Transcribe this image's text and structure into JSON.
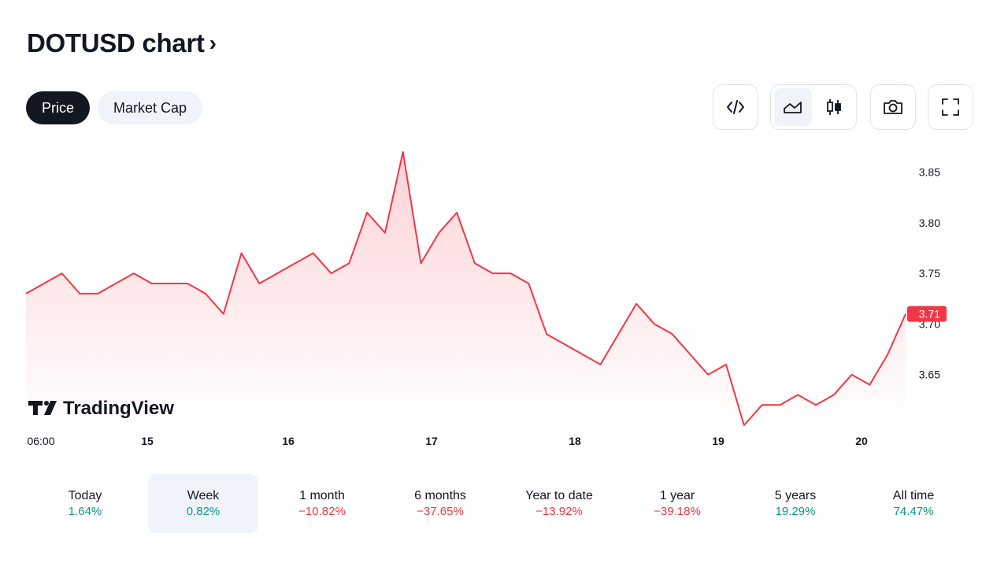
{
  "header": {
    "title": "DOTUSD chart",
    "chevron": "›"
  },
  "tabs": [
    {
      "label": "Price",
      "active": true
    },
    {
      "label": "Market Cap",
      "active": false
    }
  ],
  "toolbar": {
    "embed_icon": "code-icon",
    "area_chart_icon": "area-chart-icon",
    "candles_icon": "candles-icon",
    "snapshot_icon": "camera-icon",
    "fullscreen_icon": "fullscreen-icon",
    "active_style": "area"
  },
  "watermark": {
    "text": "TradingView"
  },
  "colors": {
    "line": "#f23645",
    "positive": "#089981",
    "negative": "#f23645",
    "text": "#131722",
    "muted": "#e0e3eb",
    "tab_bg": "#f0f3fa"
  },
  "chart_data": {
    "type": "area",
    "symbol": "DOTUSD",
    "x_tick_labels": [
      "06:00",
      "15",
      "16",
      "17",
      "18",
      "19",
      "20"
    ],
    "y_tick_labels": [
      "3.85",
      "3.80",
      "3.75",
      "3.70",
      "3.65"
    ],
    "ylim": [
      3.6,
      3.88
    ],
    "last_value": "3.71",
    "grid": false,
    "x": [
      "14 06:00",
      "14 09:00",
      "14 12:00",
      "14 15:00",
      "14 18:00",
      "14 21:00",
      "15 00:00",
      "15 03:00",
      "15 06:00",
      "15 09:00",
      "15 12:00",
      "15 15:00",
      "15 18:00",
      "15 21:00",
      "16 00:00",
      "16 03:00",
      "16 06:00",
      "16 09:00",
      "16 12:00",
      "16 15:00",
      "16 18:00",
      "16 21:00",
      "17 00:00",
      "17 03:00",
      "17 06:00",
      "17 09:00",
      "17 12:00",
      "17 15:00",
      "17 18:00",
      "17 21:00",
      "18 00:00",
      "18 03:00",
      "18 06:00",
      "18 09:00",
      "18 12:00",
      "18 15:00",
      "18 18:00",
      "18 21:00",
      "19 00:00",
      "19 03:00",
      "19 06:00",
      "19 09:00",
      "19 12:00",
      "19 15:00",
      "19 18:00",
      "19 21:00",
      "20 00:00",
      "20 03:00",
      "20 06:00",
      "20 09:00"
    ],
    "values": [
      3.73,
      3.74,
      3.75,
      3.73,
      3.73,
      3.74,
      3.75,
      3.74,
      3.74,
      3.74,
      3.73,
      3.71,
      3.77,
      3.74,
      3.75,
      3.76,
      3.77,
      3.75,
      3.76,
      3.81,
      3.79,
      3.87,
      3.76,
      3.79,
      3.81,
      3.76,
      3.75,
      3.75,
      3.74,
      3.69,
      3.68,
      3.67,
      3.66,
      3.69,
      3.72,
      3.7,
      3.69,
      3.67,
      3.65,
      3.66,
      3.6,
      3.62,
      3.62,
      3.63,
      3.62,
      3.63,
      3.65,
      3.64,
      3.67,
      3.71
    ]
  },
  "periods": [
    {
      "label": "Today",
      "value": "1.64%",
      "trend": "pos",
      "active": false
    },
    {
      "label": "Week",
      "value": "0.82%",
      "trend": "pos",
      "active": true
    },
    {
      "label": "1 month",
      "value": "−10.82%",
      "trend": "neg",
      "active": false
    },
    {
      "label": "6 months",
      "value": "−37.65%",
      "trend": "neg",
      "active": false
    },
    {
      "label": "Year to date",
      "value": "−13.92%",
      "trend": "neg",
      "active": false
    },
    {
      "label": "1 year",
      "value": "−39.18%",
      "trend": "neg",
      "active": false
    },
    {
      "label": "5 years",
      "value": "19.29%",
      "trend": "pos",
      "active": false
    },
    {
      "label": "All time",
      "value": "74.47%",
      "trend": "pos",
      "active": false
    }
  ]
}
